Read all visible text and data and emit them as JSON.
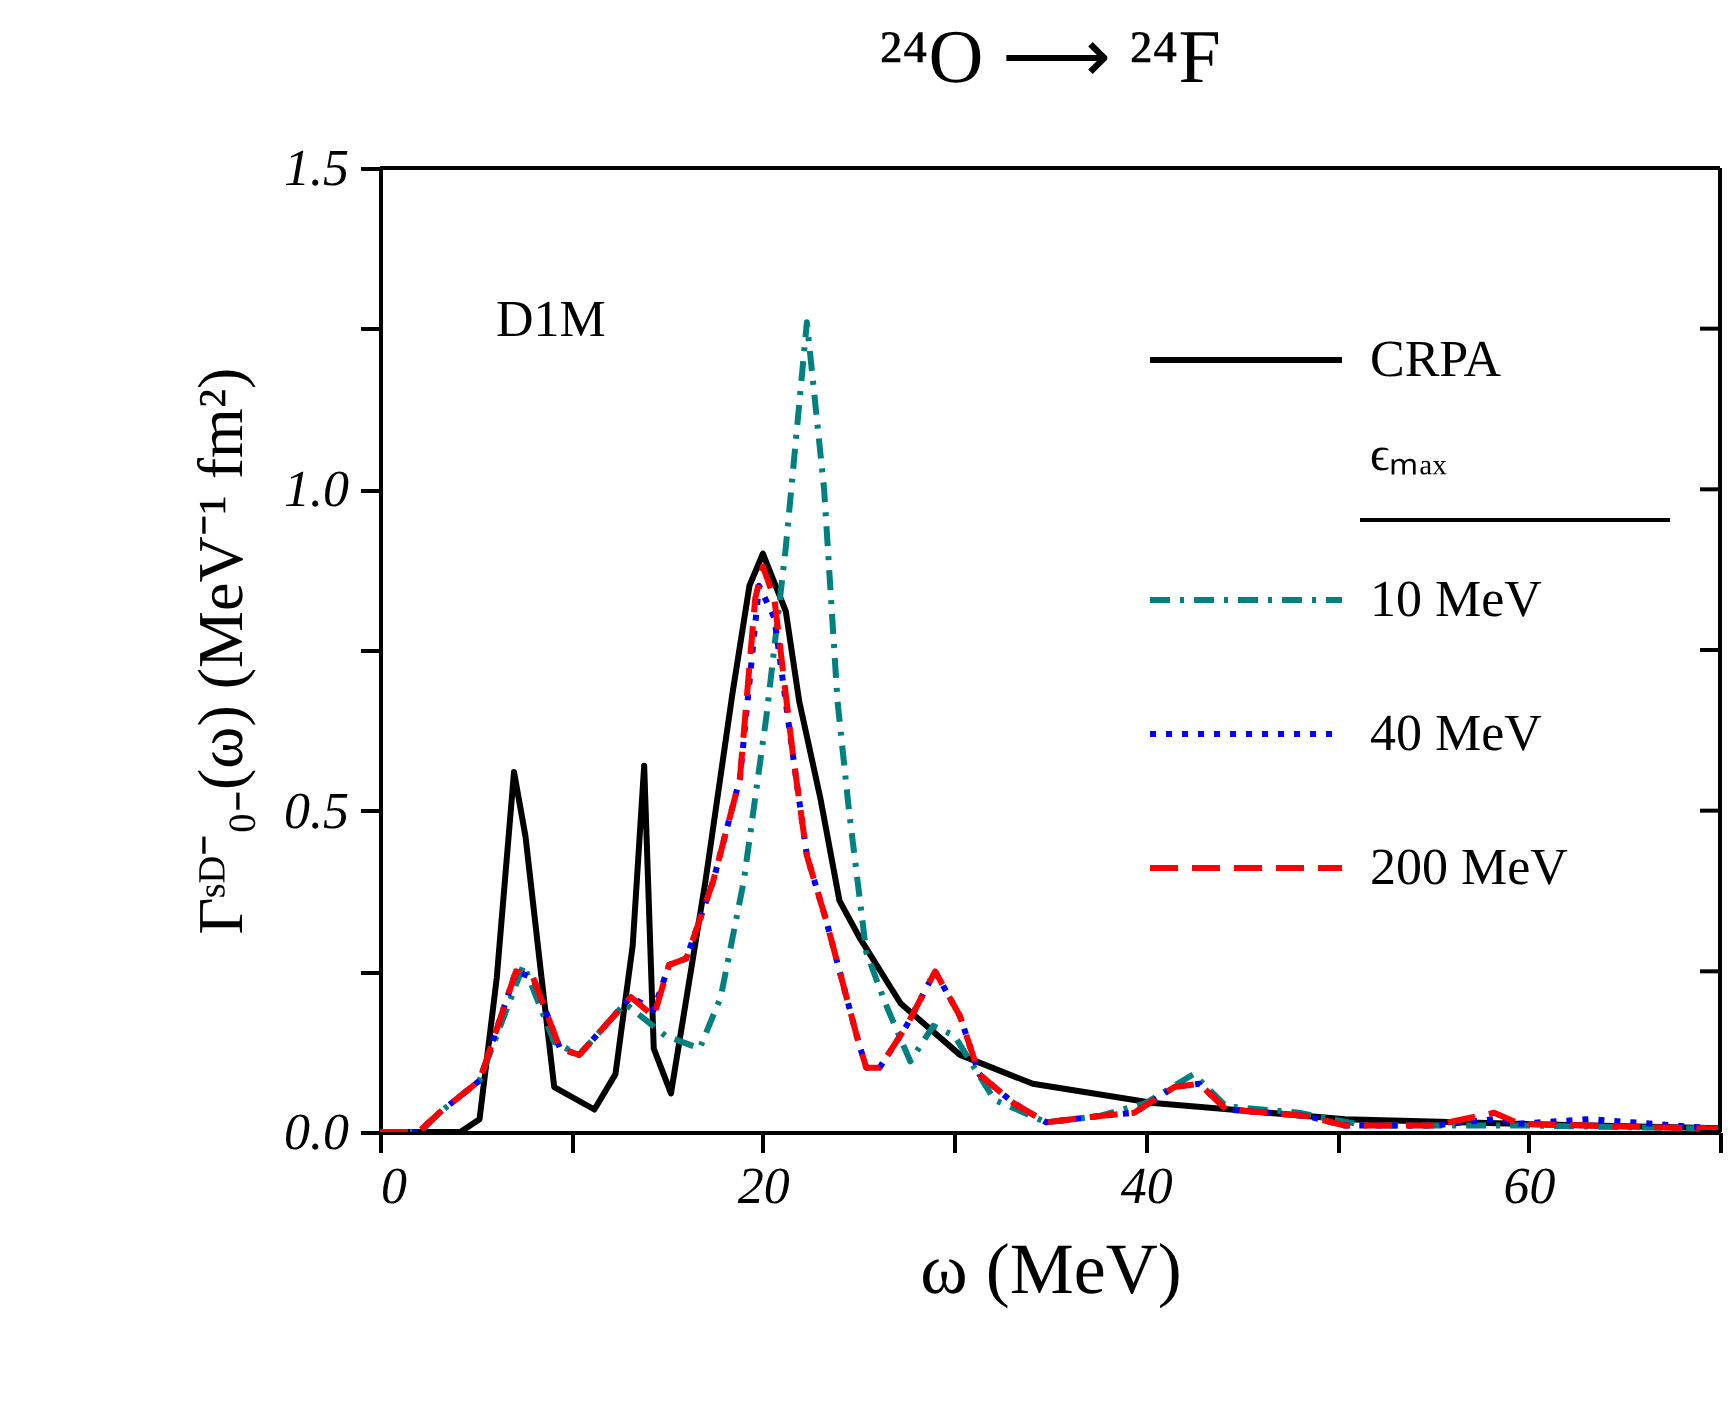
{
  "chart_data": {
    "type": "line",
    "title": "²⁴O ⟶ ²⁴F",
    "xlabel": "ω (MeV)",
    "ylabel": "Γˢᴰ⁻₀₋(ω) (MeV⁻¹ fm²)",
    "legend_title": "ϵₘₐₓ",
    "annotations": [
      "D1M"
    ],
    "xlim": [
      0,
      70
    ],
    "ylim": [
      0,
      1.5
    ],
    "xticks": [
      0,
      {
        "value": 10,
        "label": null
      },
      20,
      {
        "value": 30,
        "label": null
      },
      40,
      {
        "value": 50,
        "label": null
      },
      60,
      {
        "value": 70,
        "label": null
      }
    ],
    "yticks": [
      {
        "value": 0,
        "label": "0.0"
      },
      {
        "value": 0.25,
        "label": null
      },
      {
        "value": 0.5,
        "label": "0.5"
      },
      {
        "value": 0.75,
        "label": null
      },
      {
        "value": 1.0,
        "label": "1.0"
      },
      {
        "value": 1.25,
        "label": null
      },
      {
        "value": 1.5,
        "label": "1.5"
      }
    ],
    "grid": false,
    "legend": "top right",
    "marker": "none",
    "series": [
      {
        "name": "CRPA",
        "color": "#000000",
        "line_style": "solid",
        "x": [
          0,
          4.2,
          5.2,
          6.1,
          7.0,
          7.6,
          8.4,
          9.1,
          11.2,
          12.3,
          13.2,
          13.8,
          14.3,
          15.2,
          17.0,
          18.4,
          19.3,
          20.0,
          21.2,
          21.9,
          23.0,
          24.0,
          25.1,
          27.2,
          30.3,
          34.1,
          40.4,
          50.4,
          60.3,
          70
        ],
        "values": [
          0,
          0,
          0.02,
          0.24,
          0.56,
          0.46,
          0.25,
          0.07,
          0.035,
          0.09,
          0.29,
          0.57,
          0.13,
          0.06,
          0.39,
          0.68,
          0.85,
          0.9,
          0.81,
          0.67,
          0.52,
          0.36,
          0.3,
          0.2,
          0.12,
          0.075,
          0.045,
          0.02,
          0.012,
          0.006
        ]
      },
      {
        "name": "10 MeV",
        "color": "#008080",
        "line_style": "dashdot",
        "x": [
          0,
          2.1,
          3.1,
          5.2,
          7.5,
          9.1,
          10.4,
          12.8,
          14.9,
          16.7,
          17.8,
          19.0,
          20.2,
          21.2,
          22.3,
          23.2,
          23.9,
          24.5,
          25.4,
          26.4,
          27.7,
          28.9,
          30.0,
          32.1,
          34.8,
          37.6,
          40.0,
          42.5,
          44.2,
          48.0,
          51.5,
          60.3,
          70
        ],
        "values": [
          0,
          0,
          0.03,
          0.08,
          0.26,
          0.14,
          0.12,
          0.2,
          0.15,
          0.13,
          0.21,
          0.39,
          0.65,
          0.91,
          1.26,
          1.0,
          0.67,
          0.5,
          0.28,
          0.2,
          0.11,
          0.165,
          0.15,
          0.05,
          0.015,
          0.025,
          0.045,
          0.09,
          0.04,
          0.03,
          0.01,
          0.01,
          0.005
        ]
      },
      {
        "name": "40 MeV",
        "color": "#0000ff",
        "line_style": "dotted",
        "x": [
          0,
          2.0,
          3.1,
          5.2,
          7.1,
          8.0,
          9.4,
          10.4,
          13.1,
          14.3,
          15.1,
          16.0,
          17.4,
          18.8,
          19.8,
          20.6,
          21.6,
          22.3,
          23.3,
          24.9,
          25.4,
          26.1,
          27.5,
          29.0,
          30.3,
          31.3,
          33.1,
          34.8,
          37.6,
          39.4,
          41.5,
          42.8,
          44.2,
          48.4,
          50.4,
          55.0,
          58.2,
          59.5,
          63.2,
          70
        ],
        "values": [
          0,
          0,
          0.03,
          0.08,
          0.25,
          0.24,
          0.13,
          0.12,
          0.21,
          0.19,
          0.26,
          0.27,
          0.39,
          0.55,
          0.85,
          0.8,
          0.58,
          0.43,
          0.33,
          0.15,
          0.1,
          0.1,
          0.165,
          0.25,
          0.18,
          0.09,
          0.045,
          0.015,
          0.025,
          0.03,
          0.07,
          0.075,
          0.035,
          0.025,
          0.01,
          0.01,
          0.02,
          0.013,
          0.02,
          0.005
        ]
      },
      {
        "name": "200 MeV",
        "color": "#ff0000",
        "line_style": "dashed",
        "x": [
          0,
          2.0,
          3.1,
          5.2,
          7.1,
          8.0,
          9.4,
          10.4,
          13.1,
          14.3,
          15.1,
          16.0,
          17.4,
          18.8,
          19.6,
          20.0,
          20.6,
          21.6,
          22.3,
          23.3,
          24.9,
          25.4,
          26.1,
          27.5,
          29.0,
          30.3,
          31.3,
          33.1,
          34.8,
          37.6,
          39.4,
          41.5,
          42.8,
          44.2,
          48.4,
          50.4,
          55.0,
          58.2,
          59.5,
          63.0,
          70
        ],
        "values": [
          0,
          0,
          0.03,
          0.08,
          0.25,
          0.24,
          0.13,
          0.12,
          0.21,
          0.18,
          0.26,
          0.27,
          0.39,
          0.55,
          0.83,
          0.88,
          0.83,
          0.58,
          0.43,
          0.33,
          0.15,
          0.1,
          0.1,
          0.165,
          0.25,
          0.18,
          0.09,
          0.045,
          0.015,
          0.025,
          0.03,
          0.07,
          0.075,
          0.035,
          0.025,
          0.01,
          0.01,
          0.03,
          0.013,
          0.01,
          0.005
        ]
      }
    ]
  }
}
